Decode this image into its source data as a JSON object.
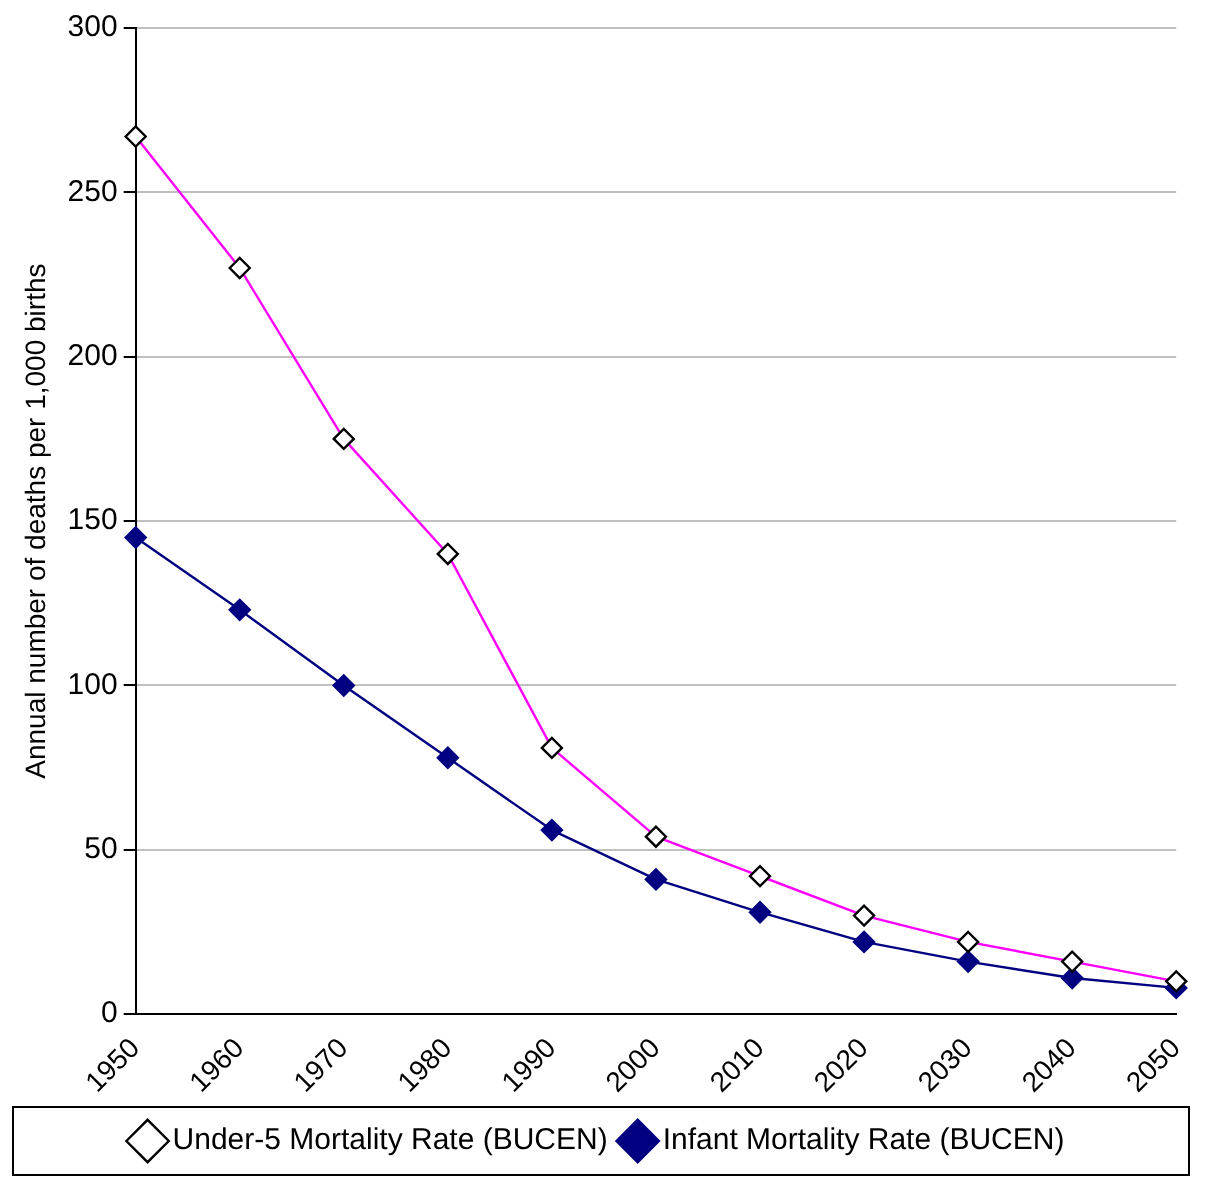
{
  "chart_data": {
    "type": "line",
    "ylabel": "Annual number of deaths per 1,000 births",
    "categories": [
      "1950",
      "1960",
      "1970",
      "1980",
      "1990",
      "2000",
      "2010",
      "2020",
      "2030",
      "2040",
      "2050"
    ],
    "series": [
      {
        "name": "Infant Mortality Rate (BUCEN)",
        "color": "#000080",
        "values": [
          145,
          123,
          100,
          78,
          56,
          41,
          31,
          22,
          16,
          11,
          8
        ]
      },
      {
        "name": "Under-5 Mortality Rate (BUCEN)",
        "color": "#ff00ff",
        "values": [
          267,
          227,
          175,
          140,
          81,
          54,
          42,
          30,
          22,
          16,
          10
        ]
      }
    ],
    "ylim": [
      0,
      300
    ],
    "yticks": [
      0,
      50,
      100,
      150,
      200,
      250,
      300
    ],
    "grid": "y",
    "legend": "bottom",
    "marker": "diamond",
    "line_style": "solid"
  }
}
